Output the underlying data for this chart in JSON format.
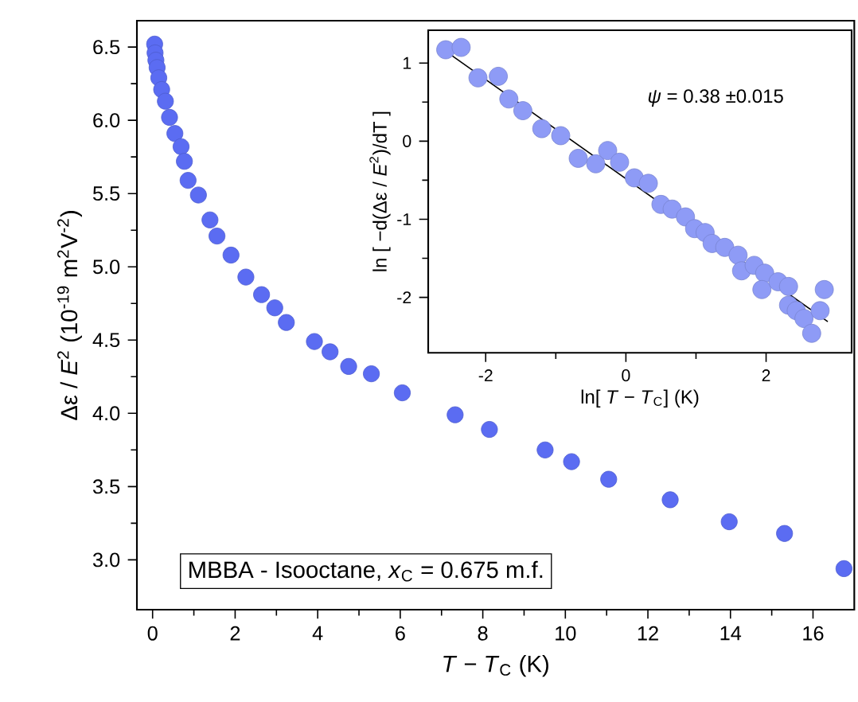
{
  "chart_data": [
    {
      "type": "scatter",
      "xlabel": "*T* − *T*$_{C}$ (K)",
      "ylabel": "Δε / *E*$^{2}$   (10$^{-19}$ m$^{2}$V$^{-2}$)",
      "annotations": [
        "MBBA - Isooctane, *x*$_{C}$ = 0.675 m.f."
      ],
      "xlim": [
        -0.38,
        17
      ],
      "ylim": [
        2.66,
        6.68
      ],
      "xticks": [
        0,
        2,
        4,
        6,
        8,
        10,
        12,
        14,
        16
      ],
      "yticks": [
        {
          "value": 3,
          "label": "3.0"
        },
        {
          "value": 3.5,
          "label": "3.5"
        },
        {
          "value": 4,
          "label": "4.0"
        },
        {
          "value": 4.5,
          "label": "4.5"
        },
        {
          "value": 5,
          "label": "5.0"
        },
        {
          "value": 5.5,
          "label": "5.5"
        },
        {
          "value": 6,
          "label": "6.0"
        },
        {
          "value": 6.5,
          "label": "6.5"
        }
      ],
      "series": [
        {
          "marker": "circle",
          "color": "#5b6cf2",
          "x": [
            0.05,
            0.06,
            0.08,
            0.11,
            0.15,
            0.22,
            0.31,
            0.41,
            0.54,
            0.69,
            0.77,
            0.86,
            1.11,
            1.39,
            1.56,
            1.9,
            2.26,
            2.64,
            2.96,
            3.24,
            3.92,
            4.3,
            4.75,
            5.3,
            6.05,
            7.33,
            8.16,
            9.51,
            10.15,
            11.05,
            12.54,
            13.97,
            15.31,
            16.75
          ],
          "values": [
            6.52,
            6.46,
            6.41,
            6.36,
            6.29,
            6.21,
            6.13,
            6.02,
            5.91,
            5.82,
            5.72,
            5.59,
            5.49,
            5.32,
            5.21,
            5.08,
            4.93,
            4.81,
            4.72,
            4.62,
            4.49,
            4.42,
            4.32,
            4.27,
            4.14,
            3.99,
            3.89,
            3.75,
            3.67,
            3.55,
            3.41,
            3.26,
            3.18,
            2.94
          ]
        }
      ]
    },
    {
      "type": "scatter",
      "xlabel": "ln[ *T* − *T*$_{C}$]  (K)",
      "ylabel": "ln [ −d(Δε / *E*$^{2}$)/dT ]",
      "annotations": [
        "*ψ* = 0.38 ±0.015"
      ],
      "xlim": [
        -2.82,
        3.22
      ],
      "ylim": [
        -2.71,
        1.42
      ],
      "xticks": [
        -2,
        0,
        2
      ],
      "yticks": [
        -2,
        -1,
        0,
        1
      ],
      "series": [
        {
          "marker": "circle",
          "color": "#8e9bf6",
          "x": [
            -2.57,
            -2.35,
            -2.11,
            -1.82,
            -1.67,
            -1.47,
            -1.2,
            -0.93,
            -0.68,
            -0.43,
            -0.26,
            -0.09,
            0.12,
            0.32,
            0.5,
            0.66,
            0.85,
            0.98,
            1.13,
            1.23,
            1.41,
            1.6,
            1.65,
            1.83,
            1.98,
            1.94,
            2.17,
            2.32,
            2.32,
            2.43,
            2.54,
            2.65,
            2.77,
            2.83
          ],
          "values": [
            1.17,
            1.2,
            0.81,
            0.83,
            0.54,
            0.39,
            0.16,
            0.07,
            -0.22,
            -0.29,
            -0.12,
            -0.27,
            -0.47,
            -0.54,
            -0.81,
            -0.87,
            -0.97,
            -1.12,
            -1.17,
            -1.31,
            -1.36,
            -1.46,
            -1.66,
            -1.59,
            -1.69,
            -1.9,
            -1.8,
            -1.86,
            -2.1,
            -2.17,
            -2.27,
            -2.46,
            -2.17,
            -1.9
          ]
        },
        {
          "type": "line",
          "color": "#000000",
          "x": [
            -2.57,
            2.88
          ],
          "values": [
            1.15,
            -2.31
          ]
        }
      ]
    }
  ]
}
